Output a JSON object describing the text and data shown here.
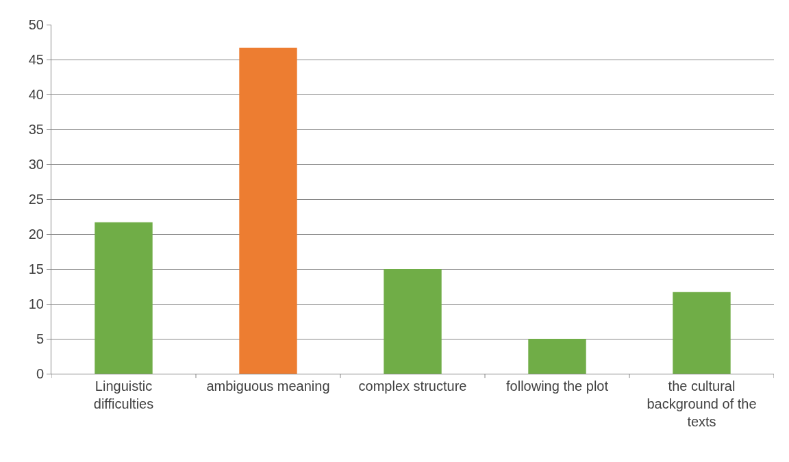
{
  "chart_data": {
    "type": "bar",
    "categories": [
      "Linguistic difficulties",
      "ambiguous meaning",
      "complex structure",
      "following the plot",
      "the cultural background of the texts"
    ],
    "values": [
      21.7,
      46.7,
      15,
      5,
      11.7
    ],
    "colors": [
      "#70ad47",
      "#ed7d31",
      "#70ad47",
      "#70ad47",
      "#70ad47"
    ],
    "ylim": [
      0,
      50
    ],
    "yticks": [
      0,
      5,
      10,
      15,
      20,
      25,
      30,
      35,
      40,
      45,
      50
    ],
    "grid": "y"
  }
}
